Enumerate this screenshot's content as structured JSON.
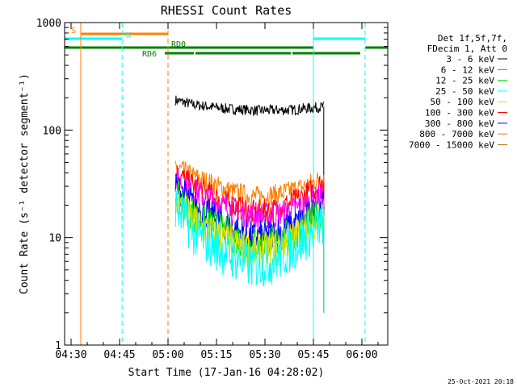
{
  "chart_data": {
    "type": "line",
    "title": "RHESSI Count Rates",
    "xlabel": "Start Time (17-Jan-16 04:28:02)",
    "ylabel": "Count Rate (s⁻¹ detector segment⁻¹)",
    "yscale": "log",
    "xlim_minutes": [
      0,
      100
    ],
    "ylim": [
      1,
      1000
    ],
    "x_ticks": [
      {
        "label": "04:30",
        "t": 2
      },
      {
        "label": "04:45",
        "t": 17
      },
      {
        "label": "05:00",
        "t": 32
      },
      {
        "label": "05:15",
        "t": 47
      },
      {
        "label": "05:30",
        "t": 62
      },
      {
        "label": "05:45",
        "t": 77
      },
      {
        "label": "06:00",
        "t": 92
      }
    ],
    "y_ticks": [
      {
        "label": "1",
        "v": 1
      },
      {
        "label": "10",
        "v": 10
      },
      {
        "label": "100",
        "v": 100
      },
      {
        "label": "1000",
        "v": 1000
      }
    ],
    "legend": {
      "header": [
        "Det 1f,5f,7f,",
        "FDecim 1, Att 0"
      ],
      "entries": [
        {
          "label": "3 - 6 keV",
          "color": "#000000"
        },
        {
          "label": "6 - 12 keV",
          "color": "#ff00ff"
        },
        {
          "label": "12 - 25 keV",
          "color": "#00e000"
        },
        {
          "label": "25 - 50 keV",
          "color": "#00ffff"
        },
        {
          "label": "50 - 100 keV",
          "color": "#e0e000"
        },
        {
          "label": "100 - 300 keV",
          "color": "#ff0000"
        },
        {
          "label": "300 - 800 keV",
          "color": "#0000ff"
        },
        {
          "label": "800 - 7000 keV",
          "color": "#ff8000"
        },
        {
          "label": "7000 - 15000 keV",
          "color": "#b07000"
        }
      ]
    },
    "series": [
      {
        "name": "3 - 6 keV",
        "color": "#000000",
        "t_start": 34.3,
        "t_end": 80.2,
        "curve_t": [
          34.3,
          40,
          50,
          60,
          70,
          80.2
        ],
        "curve_v": [
          190,
          172,
          158,
          152,
          154,
          165
        ],
        "noise": 0.05
      },
      {
        "name": "800 - 7000 keV",
        "color": "#ff8000",
        "t_start": 34.3,
        "t_end": 80.2,
        "curve_t": [
          34.3,
          40,
          50,
          58,
          65,
          73,
          80.2
        ],
        "curve_v": [
          45,
          37,
          28,
          24,
          25,
          29,
          36
        ],
        "noise": 0.1
      },
      {
        "name": "100 - 300 keV",
        "color": "#ff0000",
        "t_start": 34.3,
        "t_end": 80.2,
        "curve_t": [
          34.3,
          40,
          50,
          58,
          65,
          73,
          80.2
        ],
        "curve_v": [
          40,
          30,
          21,
          17,
          18,
          23,
          33
        ],
        "noise": 0.12
      },
      {
        "name": "6 - 12 keV",
        "color": "#ff00ff",
        "t_start": 34.3,
        "t_end": 80.2,
        "curve_t": [
          34.3,
          40,
          50,
          58,
          65,
          73,
          80.2
        ],
        "curve_v": [
          35,
          27,
          19,
          16,
          16,
          19,
          25
        ],
        "noise": 0.13
      },
      {
        "name": "300 - 800 keV",
        "color": "#0000ff",
        "t_start": 34.3,
        "t_end": 80.2,
        "curve_t": [
          34.3,
          40,
          50,
          58,
          65,
          73,
          80.2
        ],
        "curve_v": [
          30,
          20,
          13,
          10,
          11,
          14,
          20
        ],
        "noise": 0.15
      },
      {
        "name": "12 - 25 keV",
        "color": "#00e000",
        "t_start": 34.3,
        "t_end": 80.2,
        "curve_t": [
          34.3,
          40,
          50,
          58,
          65,
          73,
          80.2
        ],
        "curve_v": [
          25,
          16,
          11,
          8.5,
          9,
          12,
          18
        ],
        "noise": 0.16
      },
      {
        "name": "50 - 100 keV",
        "color": "#e0e000",
        "t_start": 34.3,
        "t_end": 80.2,
        "curve_t": [
          34.3,
          40,
          50,
          58,
          65,
          73,
          80.2
        ],
        "curve_v": [
          22,
          14,
          9.5,
          7.5,
          8,
          11,
          16
        ],
        "noise": 0.17
      },
      {
        "name": "25 - 50 keV",
        "color": "#00ffff",
        "t_start": 34.3,
        "t_end": 80.2,
        "curve_t": [
          34.3,
          40,
          50,
          58,
          65,
          73,
          80.2
        ],
        "curve_v": [
          20,
          11,
          7,
          5.5,
          6,
          9,
          14
        ],
        "noise": 0.22
      }
    ],
    "vertical_lines": [
      {
        "t": 0,
        "color": "#00ffff",
        "style": "solid"
      },
      {
        "t": 5,
        "color": "#ff8000",
        "style": "solid"
      },
      {
        "t": 17.8,
        "color": "#00ffff",
        "style": "dashed"
      },
      {
        "t": 32,
        "color": "#ff8000",
        "style": "dashed"
      },
      {
        "t": 77,
        "color": "#00ffff",
        "style": "solid"
      },
      {
        "t": 93,
        "color": "#00ffff",
        "style": "dashed"
      }
    ],
    "flag_bars": [
      {
        "label": "S",
        "color": "#ff8000",
        "segments": [
          [
            5,
            32
          ]
        ],
        "level": 1,
        "label_at": 2
      },
      {
        "label": "N",
        "color": "#00ffff",
        "segments": [
          [
            0,
            17.8
          ],
          [
            77,
            93
          ]
        ],
        "level": 2,
        "label_at": 19
      },
      {
        "label": "RD0",
        "color": "#008000",
        "segments": [
          [
            0,
            77
          ],
          [
            93,
            100
          ]
        ],
        "level": 3,
        "label_at": 33
      },
      {
        "label": "RD6",
        "color": "#008000",
        "segments": [
          [
            31,
            40
          ],
          [
            40.5,
            70
          ],
          [
            70.5,
            91.5
          ]
        ],
        "level": 4,
        "label_at": 24
      }
    ]
  },
  "footer": {
    "timestamp": "25-Oct-2021 20:18"
  }
}
